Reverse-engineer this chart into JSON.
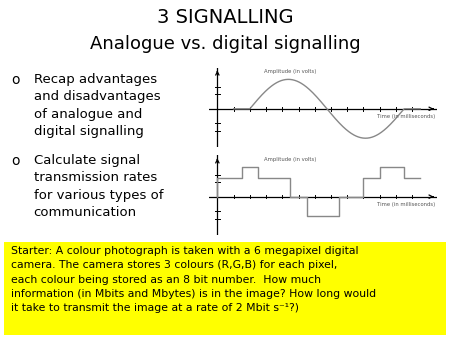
{
  "title_line1": "3 SIGNALLING",
  "title_line2": "Analogue vs. digital signalling",
  "bullet1": "Recap advantages\nand disadvantages\nof analogue and\ndigital signalling",
  "bullet2": "Calculate signal\ntransmission rates\nfor various types of\ncommunication",
  "starter_text": "Starter: A colour photograph is taken with a 6 megapixel digital\ncamera. The camera stores 3 colours (R,G,B) for each pixel,\neach colour being stored as an 8 bit number.  How much\ninformation (in Mbits and Mbytes) is in the image? How long would\nit take to transmit the image at a rate of 2 Mbit s⁻¹?)",
  "starter_bg": "#ffff00",
  "background_color": "#ffffff",
  "analog_label_y": "Amplitude (in volts)",
  "analog_label_x": "Time (in milliseconds)",
  "digital_label_y": "Amplitude (in volts)",
  "digital_label_x": "Time (in milliseconds)"
}
